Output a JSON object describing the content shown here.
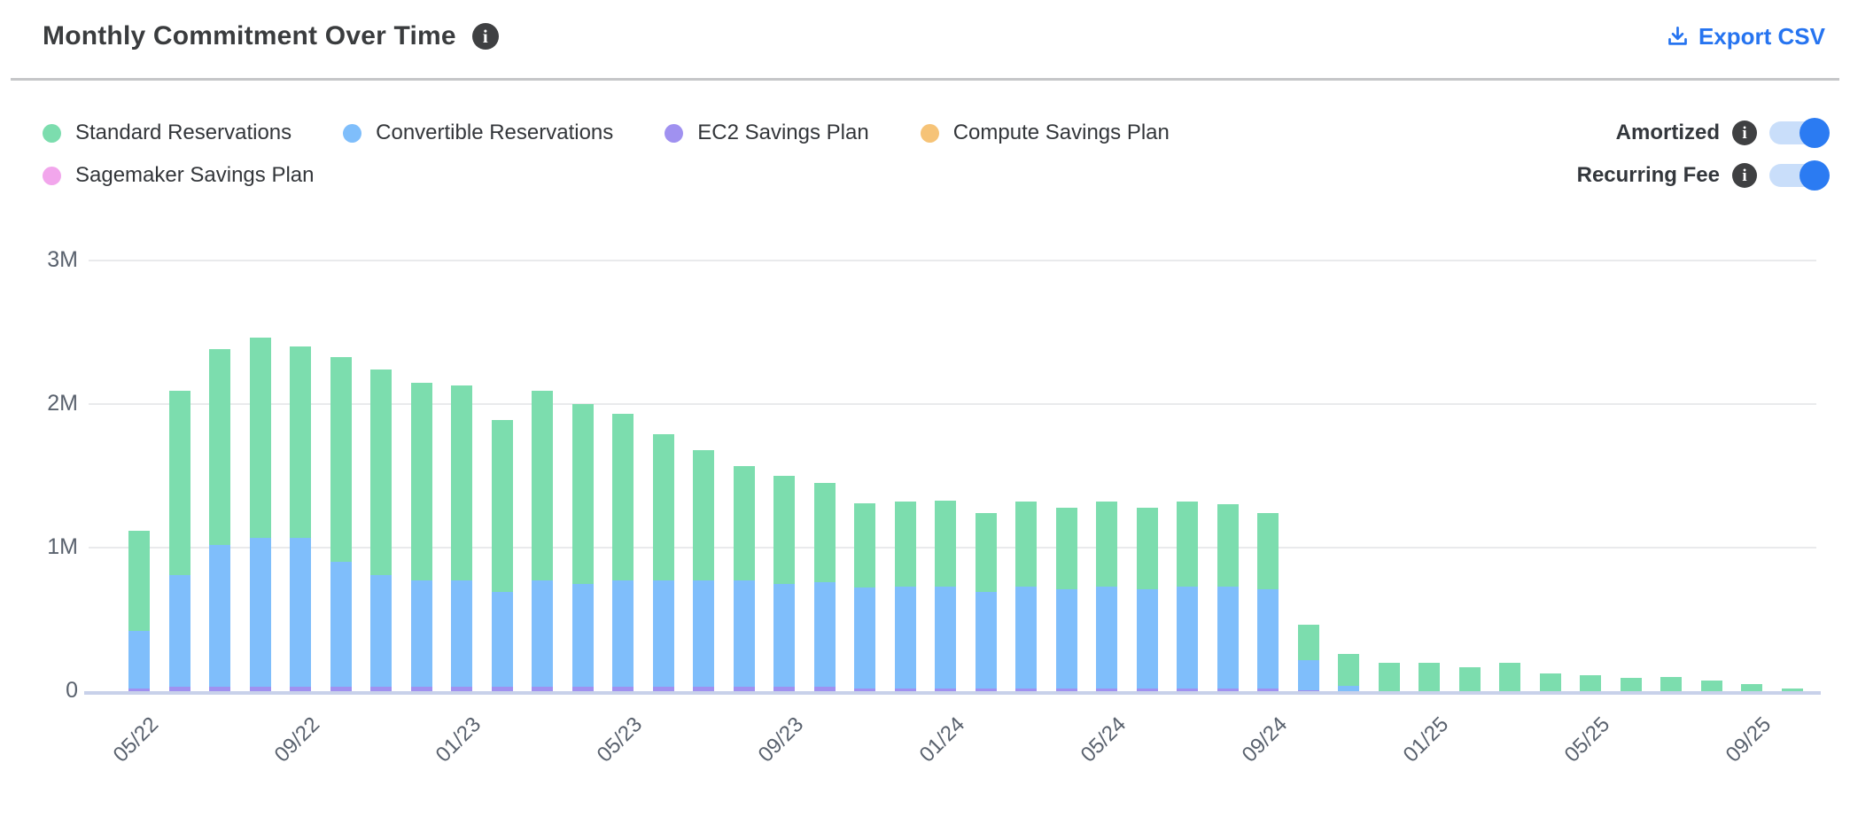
{
  "header": {
    "title": "Monthly Commitment Over Time",
    "export_label": "Export CSV"
  },
  "accent_color": "#2674f0",
  "toggle": {
    "track_color": "#c9defa",
    "knob_color": "#2b7bf2"
  },
  "legend": [
    {
      "label": "Standard Reservations",
      "color": "#7cddae"
    },
    {
      "label": "Convertible Reservations",
      "color": "#7fbefb"
    },
    {
      "label": "EC2 Savings Plan",
      "color": "#a091f0"
    },
    {
      "label": "Compute Savings Plan",
      "color": "#f6c377"
    },
    {
      "label": "Sagemaker Savings Plan",
      "color": "#f2a6ec"
    }
  ],
  "toggles": [
    {
      "label": "Amortized",
      "state": "on"
    },
    {
      "label": "Recurring Fee",
      "state": "on"
    }
  ],
  "chart_data": {
    "type": "bar",
    "stacked": true,
    "values_unit": "millions",
    "ylim": [
      0,
      3000000
    ],
    "grid": "horizontal",
    "y_tick_labels": [
      "0",
      "1M",
      "2M",
      "3M"
    ],
    "x_tick_every": 4,
    "x_tick_labels_visible": [
      "05/22",
      "09/22",
      "01/23",
      "05/23",
      "09/23",
      "01/24",
      "05/24",
      "09/24",
      "01/25",
      "05/25",
      "09/25"
    ],
    "categories": [
      "05/22",
      "06/22",
      "07/22",
      "08/22",
      "09/22",
      "10/22",
      "11/22",
      "12/22",
      "01/23",
      "02/23",
      "03/23",
      "04/23",
      "05/23",
      "06/23",
      "07/23",
      "08/23",
      "09/23",
      "10/23",
      "11/23",
      "12/23",
      "01/24",
      "02/24",
      "03/24",
      "04/24",
      "05/24",
      "06/24",
      "07/24",
      "08/24",
      "09/24",
      "10/24",
      "11/24",
      "12/24",
      "01/25",
      "02/25",
      "03/25",
      "04/25",
      "05/25",
      "06/25",
      "07/25",
      "08/25",
      "09/25",
      "10/25"
    ],
    "stack_order_note": "series listed bottom-to-top as rendered",
    "series": [
      {
        "name": "Sagemaker Savings Plan",
        "color": "#f2a6ec",
        "values": [
          0,
          0,
          0,
          0,
          0,
          0,
          0,
          0,
          0,
          0,
          0,
          0,
          0,
          0,
          0,
          0,
          0,
          0,
          0,
          0,
          0,
          0,
          0,
          0,
          0,
          0,
          0,
          0,
          0,
          0,
          0,
          0,
          0,
          0,
          0,
          0,
          0,
          0,
          0,
          0,
          0,
          0
        ]
      },
      {
        "name": "Compute Savings Plan",
        "color": "#f6c377",
        "values": [
          0,
          0,
          0,
          0,
          0,
          0,
          0,
          0,
          0,
          0,
          0,
          0,
          0,
          0,
          0,
          0,
          0,
          0,
          0,
          0,
          0,
          0,
          0,
          0,
          0,
          0,
          0,
          0,
          0,
          0,
          0,
          0,
          0,
          0,
          0,
          0,
          0,
          0,
          0,
          0,
          0,
          0
        ]
      },
      {
        "name": "EC2 Savings Plan",
        "color": "#a091f0",
        "values": [
          0.02,
          0.03,
          0.03,
          0.03,
          0.03,
          0.03,
          0.03,
          0.03,
          0.03,
          0.03,
          0.03,
          0.03,
          0.03,
          0.03,
          0.03,
          0.03,
          0.03,
          0.03,
          0.02,
          0.02,
          0.02,
          0.02,
          0.02,
          0.02,
          0.02,
          0.02,
          0.02,
          0.02,
          0.02,
          0.005,
          0,
          0,
          0,
          0,
          0,
          0,
          0,
          0,
          0,
          0,
          0,
          0
        ]
      },
      {
        "name": "Convertible Reservations",
        "color": "#7fbefb",
        "values": [
          0.4,
          0.78,
          0.99,
          1.04,
          1.04,
          0.87,
          0.78,
          0.74,
          0.74,
          0.66,
          0.74,
          0.72,
          0.74,
          0.74,
          0.74,
          0.74,
          0.72,
          0.73,
          0.7,
          0.71,
          0.71,
          0.67,
          0.71,
          0.69,
          0.71,
          0.69,
          0.71,
          0.71,
          0.69,
          0.21,
          0.04,
          0,
          0,
          0,
          0,
          0,
          0,
          0,
          0,
          0,
          0,
          0
        ]
      },
      {
        "name": "Standard Reservations",
        "color": "#7cddae",
        "values": [
          0.7,
          1.28,
          1.36,
          1.39,
          1.33,
          1.43,
          1.43,
          1.38,
          1.36,
          1.2,
          1.32,
          1.25,
          1.16,
          1.02,
          0.91,
          0.8,
          0.75,
          0.69,
          0.59,
          0.59,
          0.6,
          0.55,
          0.59,
          0.57,
          0.59,
          0.57,
          0.59,
          0.57,
          0.53,
          0.245,
          0.22,
          0.2,
          0.2,
          0.165,
          0.2,
          0.125,
          0.11,
          0.095,
          0.1,
          0.075,
          0.05,
          0.02
        ]
      }
    ]
  }
}
